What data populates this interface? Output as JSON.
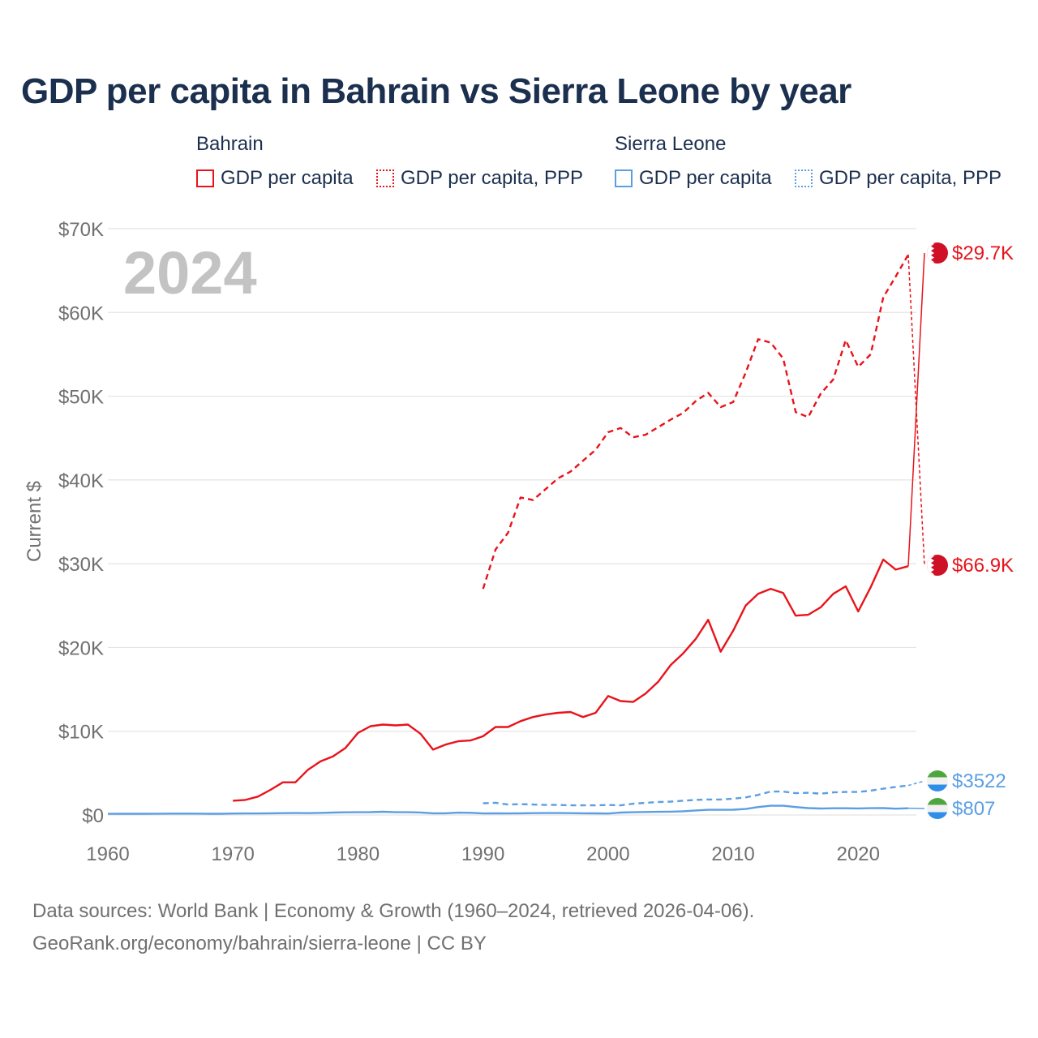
{
  "title": "GDP per capita in Bahrain vs Sierra Leone by year",
  "legend": {
    "groups": [
      {
        "country": "Bahrain",
        "items": [
          "GDP per capita",
          "GDP per capita, PPP"
        ]
      },
      {
        "country": "Sierra Leone",
        "items": [
          "GDP per capita",
          "GDP per capita, PPP"
        ]
      }
    ]
  },
  "colors": {
    "bahrain": "#e8131b",
    "sierra_leone": "#5b9fe3"
  },
  "footer": {
    "line1": "Data sources: World Bank | Economy & Growth (1960–2024, retrieved 2026-04-06).",
    "line2": "GeoRank.org/economy/bahrain/sierra-leone | CC BY"
  },
  "chart_data": {
    "type": "line",
    "title": "GDP per capita in Bahrain vs Sierra Leone by year",
    "year_watermark": "2024",
    "ylabel": "Current $",
    "xlim": [
      1960,
      2025
    ],
    "ylim": [
      0,
      70000
    ],
    "xticks": [
      1960,
      1970,
      1980,
      1990,
      2000,
      2010,
      2020
    ],
    "xtick_labels": [
      "1960",
      "1970",
      "1980",
      "1990",
      "2000",
      "2010",
      "2020"
    ],
    "yticks": [
      0,
      10000,
      20000,
      30000,
      40000,
      50000,
      60000,
      70000
    ],
    "ytick_labels": [
      "$0",
      "$10K",
      "$20K",
      "$30K",
      "$40K",
      "$50K",
      "$60K",
      "$70K"
    ],
    "grid": true,
    "series": [
      {
        "name": "Bahrain GDP per capita",
        "country": "Bahrain",
        "style": "solid",
        "color": "#e8131b",
        "end_label": "$29.7K",
        "x": [
          1970,
          1971,
          1972,
          1973,
          1974,
          1975,
          1976,
          1977,
          1978,
          1979,
          1980,
          1981,
          1982,
          1983,
          1984,
          1985,
          1986,
          1987,
          1988,
          1989,
          1990,
          1991,
          1992,
          1993,
          1994,
          1995,
          1996,
          1997,
          1998,
          1999,
          2000,
          2001,
          2002,
          2003,
          2004,
          2005,
          2006,
          2007,
          2008,
          2009,
          2010,
          2011,
          2012,
          2013,
          2014,
          2015,
          2016,
          2017,
          2018,
          2019,
          2020,
          2021,
          2022,
          2023,
          2024
        ],
        "y": [
          1700,
          1800,
          2200,
          3000,
          3900,
          3900,
          5400,
          6400,
          7000,
          8000,
          9800,
          10600,
          10800,
          10700,
          10800,
          9700,
          7800,
          8400,
          8800,
          8900,
          9400,
          10500,
          10500,
          11200,
          11700,
          12000,
          12200,
          12300,
          11700,
          12200,
          14200,
          13600,
          13500,
          14500,
          15900,
          17900,
          19300,
          21000,
          23300,
          19500,
          22000,
          25000,
          26400,
          27000,
          26500,
          23800,
          23900,
          24800,
          26400,
          27300,
          24300,
          27200,
          30500,
          29300,
          29700
        ]
      },
      {
        "name": "Bahrain GDP per capita, PPP",
        "country": "Bahrain",
        "style": "dashed",
        "color": "#e8131b",
        "end_label": "$66.9K",
        "x": [
          1990,
          1991,
          1992,
          1993,
          1994,
          1995,
          1996,
          1997,
          1998,
          1999,
          2000,
          2001,
          2002,
          2003,
          2004,
          2005,
          2006,
          2007,
          2008,
          2009,
          2010,
          2011,
          2012,
          2013,
          2014,
          2015,
          2016,
          2017,
          2018,
          2019,
          2020,
          2021,
          2022,
          2023,
          2024
        ],
        "y": [
          27000,
          31700,
          33700,
          37900,
          37600,
          38900,
          40200,
          41000,
          42300,
          43600,
          45700,
          46200,
          45100,
          45400,
          46300,
          47200,
          48000,
          49400,
          50400,
          48700,
          49300,
          52800,
          56800,
          56400,
          54500,
          48100,
          47500,
          50300,
          52000,
          56700,
          53500,
          55000,
          61800,
          64300,
          66900
        ]
      },
      {
        "name": "Sierra Leone GDP per capita",
        "country": "Sierra Leone",
        "style": "solid",
        "color": "#5b9fe3",
        "end_label": "$807",
        "x": [
          1960,
          1961,
          1962,
          1963,
          1964,
          1965,
          1966,
          1967,
          1968,
          1969,
          1970,
          1971,
          1972,
          1973,
          1974,
          1975,
          1976,
          1977,
          1978,
          1979,
          1980,
          1981,
          1982,
          1983,
          1984,
          1985,
          1986,
          1987,
          1988,
          1989,
          1990,
          1991,
          1992,
          1993,
          1994,
          1995,
          1996,
          1997,
          1998,
          1999,
          2000,
          2001,
          2002,
          2003,
          2004,
          2005,
          2006,
          2007,
          2008,
          2009,
          2010,
          2011,
          2012,
          2013,
          2014,
          2015,
          2016,
          2017,
          2018,
          2019,
          2020,
          2021,
          2022,
          2023,
          2024
        ],
        "y": [
          140,
          145,
          150,
          150,
          155,
          160,
          160,
          160,
          145,
          150,
          175,
          180,
          180,
          200,
          220,
          230,
          220,
          250,
          290,
          320,
          330,
          340,
          390,
          330,
          330,
          300,
          200,
          200,
          280,
          260,
          180,
          200,
          180,
          200,
          220,
          230,
          230,
          220,
          200,
          190,
          170,
          290,
          330,
          360,
          380,
          400,
          450,
          540,
          620,
          620,
          630,
          720,
          950,
          1100,
          1100,
          950,
          820,
          770,
          800,
          800,
          780,
          810,
          820,
          760,
          807
        ]
      },
      {
        "name": "Sierra Leone GDP per capita, PPP",
        "country": "Sierra Leone",
        "style": "dashed",
        "color": "#5b9fe3",
        "end_label": "$3522",
        "x": [
          1990,
          1991,
          1992,
          1993,
          1994,
          1995,
          1996,
          1997,
          1998,
          1999,
          2000,
          2001,
          2002,
          2003,
          2004,
          2005,
          2006,
          2007,
          2008,
          2009,
          2010,
          2011,
          2012,
          2013,
          2014,
          2015,
          2016,
          2017,
          2018,
          2019,
          2020,
          2021,
          2022,
          2023,
          2024
        ],
        "y": [
          1400,
          1450,
          1250,
          1300,
          1250,
          1200,
          1200,
          1150,
          1150,
          1150,
          1200,
          1150,
          1350,
          1450,
          1550,
          1600,
          1700,
          1800,
          1850,
          1850,
          1950,
          2100,
          2400,
          2800,
          2800,
          2600,
          2650,
          2550,
          2700,
          2750,
          2750,
          2900,
          3150,
          3350,
          3522
        ]
      }
    ]
  }
}
